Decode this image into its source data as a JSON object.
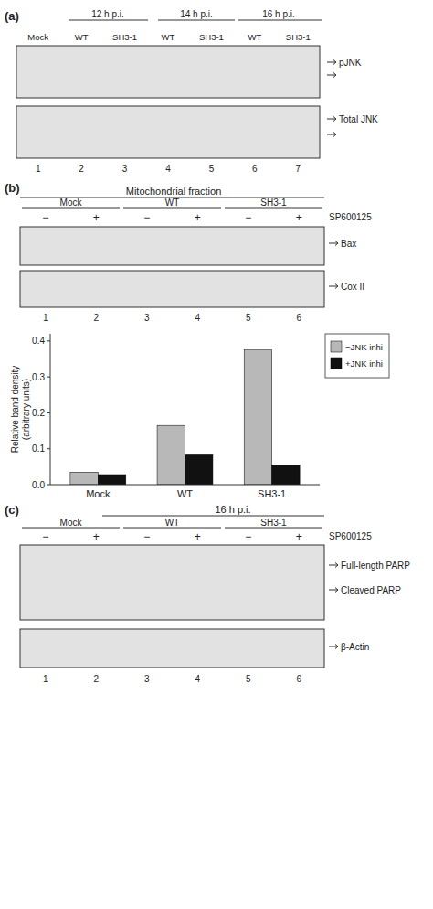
{
  "chart_data": {
    "type": "bar",
    "categories": [
      "Mock",
      "WT",
      "SH3-1"
    ],
    "series": [
      {
        "name": "−JNK inhi",
        "color": "#b8b8b8",
        "values": [
          0.035,
          0.165,
          0.375
        ]
      },
      {
        "name": "+JNK inhi",
        "color": "#111111",
        "values": [
          0.028,
          0.083,
          0.055
        ]
      }
    ],
    "y_label": "Relative band density\n(arbitrary units)",
    "ylim": [
      0,
      0.42
    ],
    "yticks": [
      {
        "value": 0,
        "label": "0.0"
      },
      0.1,
      0.2,
      0.3,
      0.4
    ],
    "grid": false,
    "legend": "right",
    "annotations": {
      "panel_a": {
        "label": "(a)",
        "time_labels": [
          "12 h p.i.",
          "14 h p.i.",
          "16 h p.i."
        ],
        "col_labels": [
          "Mock",
          "WT",
          "SH3-1",
          "WT",
          "SH3-1",
          "WT",
          "SH3-1"
        ],
        "blot_labels": [
          "pJNK",
          "Total JNK"
        ],
        "lane_numbers": [
          "1",
          "2",
          "3",
          "4",
          "5",
          "6",
          "7"
        ]
      },
      "panel_b": {
        "label": "(b)",
        "fraction_label": "Mitochondrial fraction",
        "group_labels": [
          "Mock",
          "WT",
          "SH3-1"
        ],
        "plus_minus": [
          "−",
          "+",
          "−",
          "+",
          "−",
          "+"
        ],
        "treatment_label": "SP600125",
        "blot_labels": [
          "Bax",
          "Cox II"
        ],
        "lane_numbers": [
          "1",
          "2",
          "3",
          "4",
          "5",
          "6"
        ]
      },
      "panel_c": {
        "label": "(c)",
        "time_label": "16 h p.i.",
        "group_labels": [
          "Mock",
          "WT",
          "SH3-1"
        ],
        "plus_minus": [
          "−",
          "+",
          "−",
          "+",
          "−",
          "+"
        ],
        "treatment_label": "SP600125",
        "blot_labels": [
          "Full-length PARP",
          "Cleaved  PARP",
          "β-Actin"
        ],
        "lane_numbers": [
          "1",
          "2",
          "3",
          "4",
          "5",
          "6"
        ]
      }
    }
  }
}
